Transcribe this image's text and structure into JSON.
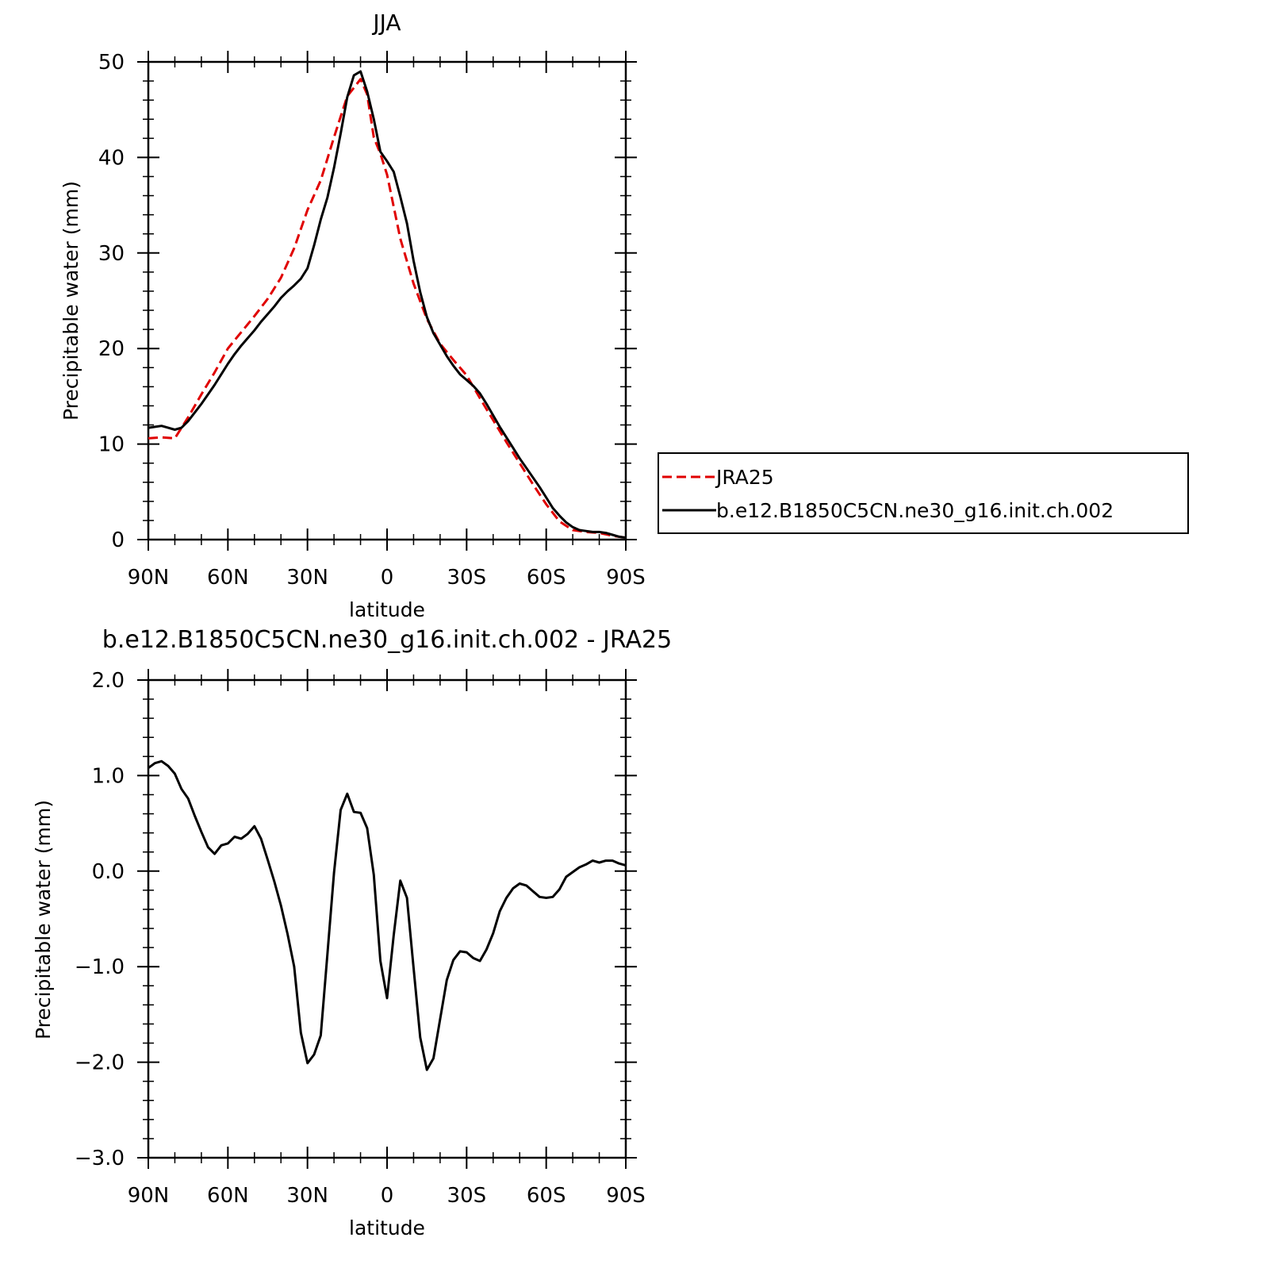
{
  "chart_data": [
    {
      "type": "line",
      "title": "JJA",
      "xlabel": "latitude",
      "ylabel": "Precipitable water (mm)",
      "xlim": [
        90,
        -90
      ],
      "ylim": [
        0,
        50
      ],
      "x_ticks": [
        90,
        60,
        30,
        0,
        -30,
        -60,
        -90
      ],
      "x_tick_labels": [
        "90N",
        "60N",
        "30N",
        "0",
        "30S",
        "60S",
        "90S"
      ],
      "y_ticks": [
        0,
        10,
        20,
        30,
        40,
        50
      ],
      "y_tick_labels": [
        "0",
        "10",
        "20",
        "30",
        "40",
        "50"
      ],
      "legend": {
        "placement": "right",
        "entries": [
          "JRA25",
          "b.e12.B1850C5CN.ne30_g16.init.ch.002"
        ]
      },
      "series": [
        {
          "name": "JRA25",
          "color": "#e00000",
          "style": "dashed",
          "x": [
            90,
            85,
            80,
            75,
            70,
            65,
            60,
            55,
            50,
            45,
            40,
            35,
            30,
            25,
            20,
            15,
            10,
            7.5,
            5,
            2.5,
            0,
            -5,
            -10,
            -15,
            -20,
            -25,
            -30,
            -35,
            -40,
            -45,
            -50,
            -55,
            -60,
            -65,
            -70,
            -75,
            -80,
            -85,
            -90
          ],
          "y": [
            10.6,
            10.7,
            10.6,
            12.8,
            15.2,
            17.5,
            20.0,
            21.7,
            23.4,
            25.2,
            27.4,
            30.5,
            34.5,
            37.6,
            42.1,
            46.4,
            48.2,
            46.6,
            42.1,
            40.4,
            38.2,
            31.5,
            26.8,
            23.1,
            20.5,
            18.8,
            17.2,
            14.8,
            12.5,
            10.2,
            8.0,
            5.8,
            3.7,
            1.9,
            1.0,
            0.8,
            0.7,
            0.4,
            0.2
          ]
        },
        {
          "name": "b.e12.B1850C5CN.ne30_g16.init.ch.002",
          "color": "#000000",
          "style": "solid",
          "x": [
            90,
            87.5,
            85,
            82.5,
            80,
            77.5,
            75,
            72.5,
            70,
            67.5,
            65,
            62.5,
            60,
            57.5,
            55,
            52.5,
            50,
            47.5,
            45,
            42.5,
            40,
            37.5,
            35,
            32.5,
            30,
            27.5,
            25,
            22.5,
            20,
            17.5,
            15,
            12.5,
            10,
            7.5,
            5,
            2.5,
            0,
            -2.5,
            -5,
            -7.5,
            -10,
            -12.5,
            -15,
            -17.5,
            -20,
            -22.5,
            -25,
            -27.5,
            -30,
            -32.5,
            -35,
            -37.5,
            -40,
            -42.5,
            -45,
            -47.5,
            -50,
            -52.5,
            -55,
            -57.5,
            -60,
            -62.5,
            -65,
            -67.5,
            -70,
            -72.5,
            -75,
            -77.5,
            -80,
            -82.5,
            -85,
            -87.5,
            -90
          ],
          "y": [
            11.7,
            11.8,
            11.9,
            11.7,
            11.5,
            11.7,
            12.4,
            13.3,
            14.2,
            15.2,
            16.2,
            17.3,
            18.4,
            19.4,
            20.3,
            21.1,
            21.9,
            22.8,
            23.6,
            24.4,
            25.3,
            26.0,
            26.6,
            27.3,
            28.4,
            30.8,
            33.5,
            35.8,
            38.9,
            42.5,
            46.3,
            48.6,
            49.0,
            46.9,
            44.0,
            40.6,
            39.6,
            38.5,
            35.9,
            33.1,
            29.2,
            25.9,
            23.3,
            21.6,
            20.4,
            19.2,
            18.2,
            17.3,
            16.7,
            16.1,
            15.3,
            14.2,
            13.0,
            11.8,
            10.7,
            9.6,
            8.5,
            7.5,
            6.5,
            5.5,
            4.4,
            3.3,
            2.5,
            1.8,
            1.3,
            1.0,
            0.9,
            0.8,
            0.8,
            0.7,
            0.5,
            0.3,
            0.2
          ]
        }
      ]
    },
    {
      "type": "line",
      "title": "b.e12.B1850C5CN.ne30_g16.init.ch.002 - JRA25",
      "xlabel": "latitude",
      "ylabel": "Precipitable water (mm)",
      "xlim": [
        90,
        -90
      ],
      "ylim": [
        -3.0,
        2.0
      ],
      "x_ticks": [
        90,
        60,
        30,
        0,
        -30,
        -60,
        -90
      ],
      "x_tick_labels": [
        "90N",
        "60N",
        "30N",
        "0",
        "30S",
        "60S",
        "90S"
      ],
      "y_ticks": [
        -3.0,
        -2.0,
        -1.0,
        0.0,
        1.0,
        2.0
      ],
      "y_tick_labels": [
        "−3.0",
        "−2.0",
        "−1.0",
        "0.0",
        "1.0",
        "2.0"
      ],
      "series": [
        {
          "color": "#000000",
          "style": "solid",
          "x": [
            90,
            87.5,
            85,
            82.5,
            80,
            77.5,
            75,
            72.5,
            70,
            67.5,
            65,
            62.5,
            60,
            57.5,
            55,
            52.5,
            50,
            47.5,
            45,
            42.5,
            40,
            37.5,
            35,
            32.5,
            30,
            27.5,
            25,
            22.5,
            20,
            17.5,
            15,
            12.5,
            10,
            7.5,
            5,
            2.5,
            0,
            -2.5,
            -5,
            -7.5,
            -10,
            -12.5,
            -15,
            -17.5,
            -20,
            -22.5,
            -25,
            -27.5,
            -30,
            -32.5,
            -35,
            -37.5,
            -40,
            -42.5,
            -45,
            -47.5,
            -50,
            -52.5,
            -55,
            -57.5,
            -60,
            -62.5,
            -65,
            -67.5,
            -70,
            -72.5,
            -75,
            -77.5,
            -80,
            -82.5,
            -85,
            -87.5,
            -90
          ],
          "y": [
            1.08,
            1.13,
            1.15,
            1.1,
            1.02,
            0.86,
            0.76,
            0.58,
            0.41,
            0.25,
            0.18,
            0.27,
            0.29,
            0.36,
            0.34,
            0.39,
            0.47,
            0.34,
            0.12,
            -0.11,
            -0.36,
            -0.66,
            -1.0,
            -1.69,
            -2.01,
            -1.92,
            -1.72,
            -0.87,
            -0.02,
            0.64,
            0.81,
            0.62,
            0.61,
            0.45,
            -0.04,
            -0.94,
            -1.33,
            -0.67,
            -0.1,
            -0.28,
            -1.01,
            -1.74,
            -2.08,
            -1.96,
            -1.55,
            -1.14,
            -0.93,
            -0.84,
            -0.85,
            -0.91,
            -0.94,
            -0.82,
            -0.65,
            -0.42,
            -0.28,
            -0.18,
            -0.13,
            -0.15,
            -0.21,
            -0.27,
            -0.28,
            -0.27,
            -0.19,
            -0.06,
            -0.01,
            0.04,
            0.07,
            0.11,
            0.09,
            0.11,
            0.11,
            0.08,
            0.06
          ]
        }
      ]
    }
  ]
}
